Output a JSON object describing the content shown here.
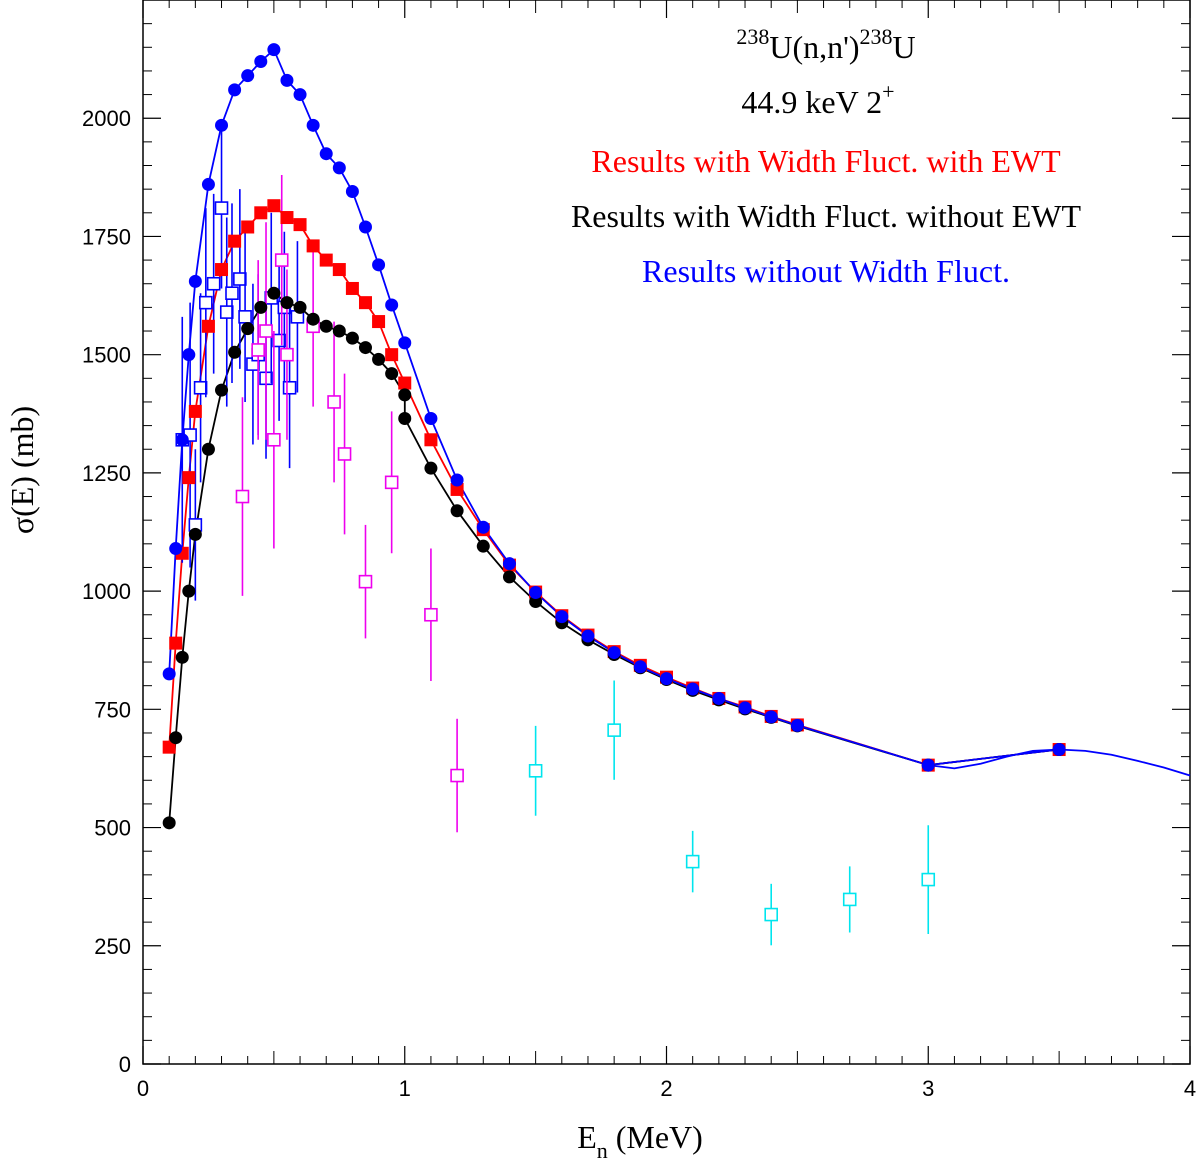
{
  "chart_data": {
    "type": "scatter",
    "title_lines": [
      {
        "sup1": "238",
        "base1": "U(n,n')",
        "sup2": "238",
        "base2": "U"
      },
      {
        "text": "44.9 keV 2",
        "sup": "+"
      }
    ],
    "annotations": [
      {
        "text": "Results with Width Fluct. with EWT",
        "color": "#ff0000"
      },
      {
        "text": "Results with Width Fluct. without EWT",
        "color": "#000000"
      },
      {
        "text": "Results without Width Fluct.",
        "color": "#0000ff"
      }
    ],
    "xlabel": {
      "base": "E",
      "sub": "n",
      "rest": " (MeV)"
    },
    "ylabel": "σ(E) (mb)",
    "xlim": [
      0,
      4
    ],
    "ylim": [
      0,
      2250
    ],
    "x_ticks": [
      {
        "v": 0,
        "label": "0"
      },
      {
        "v": 1,
        "label": "1"
      },
      {
        "v": 2,
        "label": "2"
      },
      {
        "v": 3,
        "label": "3"
      },
      {
        "v": 4,
        "label": "4"
      }
    ],
    "y_ticks": [
      {
        "v": 0,
        "label": "0"
      },
      {
        "v": 250,
        "label": "250"
      },
      {
        "v": 500,
        "label": "500"
      },
      {
        "v": 750,
        "label": "750"
      },
      {
        "v": 1000,
        "label": "1000"
      },
      {
        "v": 1250,
        "label": "1250"
      },
      {
        "v": 1500,
        "label": "1500"
      },
      {
        "v": 1750,
        "label": "1750"
      },
      {
        "v": 2000,
        "label": "2000"
      }
    ],
    "series": [
      {
        "marker": "filled-square",
        "color": "#ff0000",
        "points": [
          [
            0.1,
            670
          ],
          [
            0.125,
            890
          ],
          [
            0.15,
            1080
          ],
          [
            0.175,
            1240
          ],
          [
            0.2,
            1380
          ],
          [
            0.25,
            1560
          ],
          [
            0.3,
            1680
          ],
          [
            0.35,
            1740
          ],
          [
            0.4,
            1770
          ],
          [
            0.45,
            1800
          ],
          [
            0.5,
            1815
          ],
          [
            0.55,
            1790
          ],
          [
            0.6,
            1775
          ],
          [
            0.65,
            1730
          ],
          [
            0.7,
            1700
          ],
          [
            0.75,
            1680
          ],
          [
            0.8,
            1640
          ],
          [
            0.85,
            1610
          ],
          [
            0.9,
            1570
          ],
          [
            0.95,
            1500
          ],
          [
            1.0,
            1440
          ],
          [
            1.1,
            1320
          ],
          [
            1.2,
            1215
          ],
          [
            1.3,
            1130
          ],
          [
            1.4,
            1055
          ],
          [
            1.5,
            998
          ],
          [
            1.6,
            948
          ],
          [
            1.7,
            907
          ],
          [
            1.8,
            872
          ],
          [
            1.9,
            843
          ],
          [
            2.0,
            818
          ],
          [
            2.1,
            795
          ],
          [
            2.2,
            773
          ],
          [
            2.3,
            755
          ],
          [
            2.4,
            735
          ],
          [
            2.5,
            717
          ],
          [
            3.0,
            632
          ],
          [
            3.5,
            665
          ]
        ]
      },
      {
        "marker": "filled-circle",
        "color": "#000000",
        "points": [
          [
            0.1,
            510
          ],
          [
            0.125,
            690
          ],
          [
            0.15,
            860
          ],
          [
            0.175,
            1000
          ],
          [
            0.2,
            1120
          ],
          [
            0.25,
            1300
          ],
          [
            0.3,
            1425
          ],
          [
            0.35,
            1505
          ],
          [
            0.4,
            1555
          ],
          [
            0.45,
            1600
          ],
          [
            0.5,
            1630
          ],
          [
            0.55,
            1610
          ],
          [
            0.6,
            1600
          ],
          [
            0.65,
            1575
          ],
          [
            0.7,
            1560
          ],
          [
            0.75,
            1550
          ],
          [
            0.8,
            1535
          ],
          [
            0.85,
            1515
          ],
          [
            0.9,
            1490
          ],
          [
            0.95,
            1460
          ],
          [
            1.0,
            1415
          ],
          [
            1.0,
            1365
          ],
          [
            1.1,
            1260
          ],
          [
            1.2,
            1170
          ],
          [
            1.3,
            1095
          ],
          [
            1.4,
            1030
          ],
          [
            1.5,
            978
          ],
          [
            1.6,
            933
          ],
          [
            1.7,
            897
          ],
          [
            1.8,
            866
          ],
          [
            1.9,
            838
          ],
          [
            2.0,
            813
          ],
          [
            2.1,
            790
          ],
          [
            2.2,
            770
          ],
          [
            2.3,
            751
          ],
          [
            2.4,
            733
          ],
          [
            2.5,
            715
          ],
          [
            3.0,
            632
          ],
          [
            3.5,
            665
          ]
        ]
      },
      {
        "marker": "filled-circle",
        "color": "#0000ff",
        "points": [
          [
            0.1,
            825
          ],
          [
            0.125,
            1090
          ],
          [
            0.15,
            1320
          ],
          [
            0.175,
            1500
          ],
          [
            0.2,
            1655
          ],
          [
            0.25,
            1860
          ],
          [
            0.3,
            1985
          ],
          [
            0.35,
            2060
          ],
          [
            0.4,
            2090
          ],
          [
            0.45,
            2120
          ],
          [
            0.5,
            2145
          ],
          [
            0.55,
            2080
          ],
          [
            0.6,
            2050
          ],
          [
            0.65,
            1985
          ],
          [
            0.7,
            1925
          ],
          [
            0.75,
            1895
          ],
          [
            0.8,
            1845
          ],
          [
            0.85,
            1770
          ],
          [
            0.9,
            1690
          ],
          [
            0.95,
            1605
          ],
          [
            1.0,
            1525
          ],
          [
            1.1,
            1365
          ],
          [
            1.2,
            1235
          ],
          [
            1.3,
            1135
          ],
          [
            1.4,
            1058
          ],
          [
            1.5,
            997
          ],
          [
            1.6,
            946
          ],
          [
            1.7,
            905
          ],
          [
            1.8,
            870
          ],
          [
            1.9,
            840
          ],
          [
            2.0,
            815
          ],
          [
            2.1,
            793
          ],
          [
            2.2,
            773
          ],
          [
            2.3,
            753
          ],
          [
            2.4,
            734
          ],
          [
            2.5,
            716
          ],
          [
            3.0,
            632
          ],
          [
            3.5,
            665
          ]
        ]
      },
      {
        "marker": "open-square",
        "color": "#0000ff",
        "points": [
          {
            "x": 0.15,
            "y": 1320,
            "err": 260
          },
          {
            "x": 0.18,
            "y": 1330,
            "err": 280
          },
          {
            "x": 0.2,
            "y": 1140,
            "err": 160
          },
          {
            "x": 0.22,
            "y": 1430,
            "err": 200
          },
          {
            "x": 0.24,
            "y": 1610,
            "err": 200
          },
          {
            "x": 0.27,
            "y": 1650,
            "err": 190
          },
          {
            "x": 0.3,
            "y": 1810,
            "err": 170
          },
          {
            "x": 0.32,
            "y": 1590,
            "err": 200
          },
          {
            "x": 0.34,
            "y": 1630,
            "err": 190
          },
          {
            "x": 0.37,
            "y": 1660,
            "err": 190
          },
          {
            "x": 0.39,
            "y": 1580,
            "err": 180
          },
          {
            "x": 0.42,
            "y": 1480,
            "err": 170
          },
          {
            "x": 0.44,
            "y": 1500,
            "err": 170
          },
          {
            "x": 0.47,
            "y": 1450,
            "err": 170
          },
          {
            "x": 0.49,
            "y": 1620,
            "err": 180
          },
          {
            "x": 0.52,
            "y": 1530,
            "err": 170
          },
          {
            "x": 0.54,
            "y": 1600,
            "err": 160
          },
          {
            "x": 0.56,
            "y": 1430,
            "err": 170
          },
          {
            "x": 0.59,
            "y": 1580,
            "err": 160
          }
        ]
      },
      {
        "marker": "open-square",
        "color": "#ee00ee",
        "points": [
          {
            "x": 0.38,
            "y": 1200,
            "err": 210
          },
          {
            "x": 0.44,
            "y": 1510,
            "err": 190
          },
          {
            "x": 0.47,
            "y": 1550,
            "err": 230
          },
          {
            "x": 0.5,
            "y": 1320,
            "err": 230
          },
          {
            "x": 0.53,
            "y": 1700,
            "err": 180
          },
          {
            "x": 0.55,
            "y": 1500,
            "err": 180
          },
          {
            "x": 0.65,
            "y": 1560,
            "err": 170
          },
          {
            "x": 0.73,
            "y": 1400,
            "err": 170
          },
          {
            "x": 0.77,
            "y": 1290,
            "err": 170
          },
          {
            "x": 0.85,
            "y": 1020,
            "err": 120
          },
          {
            "x": 0.95,
            "y": 1230,
            "err": 150
          },
          {
            "x": 1.1,
            "y": 950,
            "err": 140
          },
          {
            "x": 1.2,
            "y": 610,
            "err": 120
          }
        ]
      },
      {
        "marker": "open-square",
        "color": "#00e5ee",
        "points": [
          {
            "x": 1.5,
            "y": 620,
            "err": 95
          },
          {
            "x": 1.8,
            "y": 706,
            "err": 105
          },
          {
            "x": 2.1,
            "y": 428,
            "err": 65
          },
          {
            "x": 2.4,
            "y": 316,
            "err": 65
          },
          {
            "x": 2.7,
            "y": 348,
            "err": 70
          },
          {
            "x": 3.0,
            "y": 390,
            "err": 115
          }
        ]
      }
    ],
    "curve_tail": {
      "color": "#0000ff",
      "points": [
        [
          3.0,
          632
        ],
        [
          3.1,
          625
        ],
        [
          3.2,
          635
        ],
        [
          3.3,
          650
        ],
        [
          3.4,
          662
        ],
        [
          3.5,
          665
        ],
        [
          3.6,
          662
        ],
        [
          3.7,
          654
        ],
        [
          3.8,
          641
        ],
        [
          3.9,
          627
        ],
        [
          4.0,
          610
        ]
      ]
    },
    "grid": false,
    "legend": "none"
  }
}
